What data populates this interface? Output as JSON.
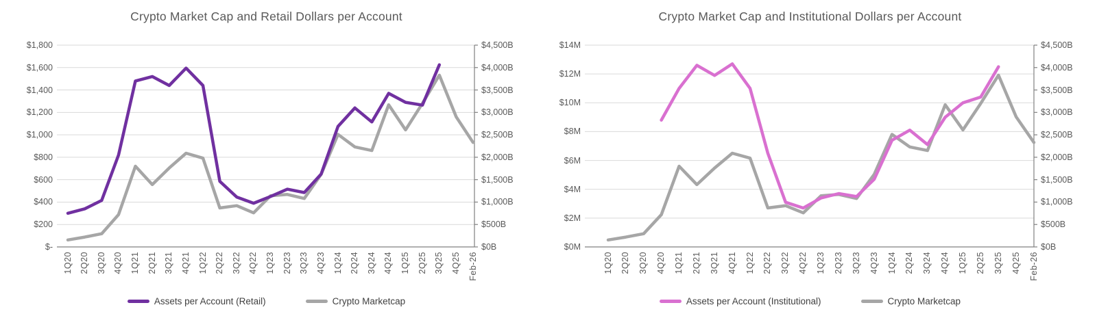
{
  "page": {
    "background": "#ffffff"
  },
  "colors": {
    "retail_line": "#7030A0",
    "institutional_line": "#D970D0",
    "marketcap_line": "#A6A6A6",
    "gridline": "#D9D9D9",
    "axis_line": "#808080",
    "title_text": "#595959",
    "tick_text": "#595959",
    "legend_text": "#404040"
  },
  "chart_data": [
    {
      "type": "line",
      "title": "Crypto Market Cap and Retail Dollars per Account",
      "legend_position": "bottom",
      "grid": "horizontal-on",
      "categories": [
        "1Q20",
        "2Q20",
        "3Q20",
        "4Q20",
        "1Q21",
        "2Q21",
        "3Q21",
        "4Q21",
        "1Q22",
        "2Q22",
        "3Q22",
        "4Q22",
        "1Q23",
        "2Q23",
        "3Q23",
        "4Q23",
        "1Q24",
        "2Q24",
        "3Q24",
        "4Q24",
        "1Q25",
        "2Q25",
        "3Q25",
        "4Q25",
        "Feb-26"
      ],
      "left_axis": {
        "min": 0,
        "max": 1800,
        "step": 200,
        "ticks": [
          "$-",
          "$200",
          "$400",
          "$600",
          "$800",
          "$1,000",
          "$1,200",
          "$1,400",
          "$1,600",
          "$1,800"
        ]
      },
      "right_axis": {
        "min": 0,
        "max": 4500,
        "step": 500,
        "ticks": [
          "$0B",
          "$500B",
          "$1,000B",
          "$1,500B",
          "$2,000B",
          "$2,500B",
          "$3,000B",
          "$3,500B",
          "$4,000B",
          "$4,500B"
        ]
      },
      "series": [
        {
          "name": "Assets per Account (Retail)",
          "id": "retail-line",
          "axis": "left",
          "color": "#7030A0",
          "values": [
            300,
            340,
            415,
            820,
            1480,
            1520,
            1440,
            1595,
            1440,
            585,
            445,
            390,
            450,
            515,
            485,
            650,
            1075,
            1240,
            1115,
            1370,
            1290,
            1265,
            1625,
            null,
            null
          ]
        },
        {
          "name": "Crypto Marketcap",
          "id": "marketcap-line",
          "axis": "right",
          "color": "#A6A6A6",
          "values": [
            155,
            220,
            295,
            720,
            1800,
            1390,
            1760,
            2090,
            1980,
            870,
            920,
            760,
            1140,
            1170,
            1080,
            1620,
            2510,
            2230,
            2150,
            3170,
            2610,
            3200,
            3830,
            2900,
            2330
          ]
        }
      ]
    },
    {
      "type": "line",
      "title": "Crypto Market Cap and Institutional Dollars per Account",
      "legend_position": "bottom",
      "grid": "horizontal-on",
      "categories": [
        "1Q20",
        "2Q20",
        "3Q20",
        "4Q20",
        "1Q21",
        "2Q21",
        "3Q21",
        "4Q21",
        "1Q22",
        "2Q22",
        "3Q22",
        "4Q22",
        "1Q23",
        "2Q23",
        "3Q23",
        "4Q23",
        "1Q24",
        "2Q24",
        "3Q24",
        "4Q24",
        "1Q25",
        "2Q25",
        "3Q25",
        "4Q25",
        "Feb-26"
      ],
      "left_axis": {
        "min": 0,
        "max": 14,
        "step": 2,
        "ticks": [
          "$0M",
          "$2M",
          "$4M",
          "$6M",
          "$8M",
          "$10M",
          "$12M",
          "$14M"
        ]
      },
      "right_axis": {
        "min": 0,
        "max": 4500,
        "step": 500,
        "ticks": [
          "$0B",
          "$500B",
          "$1,000B",
          "$1,500B",
          "$2,000B",
          "$2,500B",
          "$3,000B",
          "$3,500B",
          "$4,000B",
          "$4,500B"
        ]
      },
      "series": [
        {
          "name": "Assets per Account (Institutional)",
          "id": "institutional-line",
          "axis": "left",
          "color": "#D970D0",
          "values": [
            null,
            null,
            null,
            8.8,
            11.0,
            12.6,
            11.9,
            12.7,
            11.0,
            6.5,
            3.1,
            2.7,
            3.4,
            3.7,
            3.5,
            4.7,
            7.4,
            8.1,
            7.1,
            9.0,
            10.0,
            10.4,
            12.5,
            null,
            null
          ]
        },
        {
          "name": "Crypto Marketcap",
          "id": "marketcap-line",
          "axis": "right",
          "color": "#A6A6A6",
          "values": [
            155,
            220,
            295,
            720,
            1800,
            1390,
            1760,
            2090,
            1980,
            870,
            920,
            760,
            1140,
            1170,
            1080,
            1620,
            2510,
            2230,
            2150,
            3170,
            2610,
            3200,
            3830,
            2900,
            2330
          ]
        }
      ]
    }
  ]
}
